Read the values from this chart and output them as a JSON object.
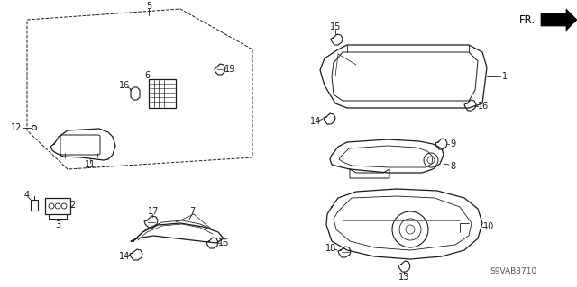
{
  "bg_color": "#ffffff",
  "diagram_code": "S9VAB3710",
  "fig_width": 6.4,
  "fig_height": 3.19,
  "dpi": 100,
  "line_color": "#1a1a1a",
  "label_color": "#1a1a1a",
  "gray": "#555555"
}
